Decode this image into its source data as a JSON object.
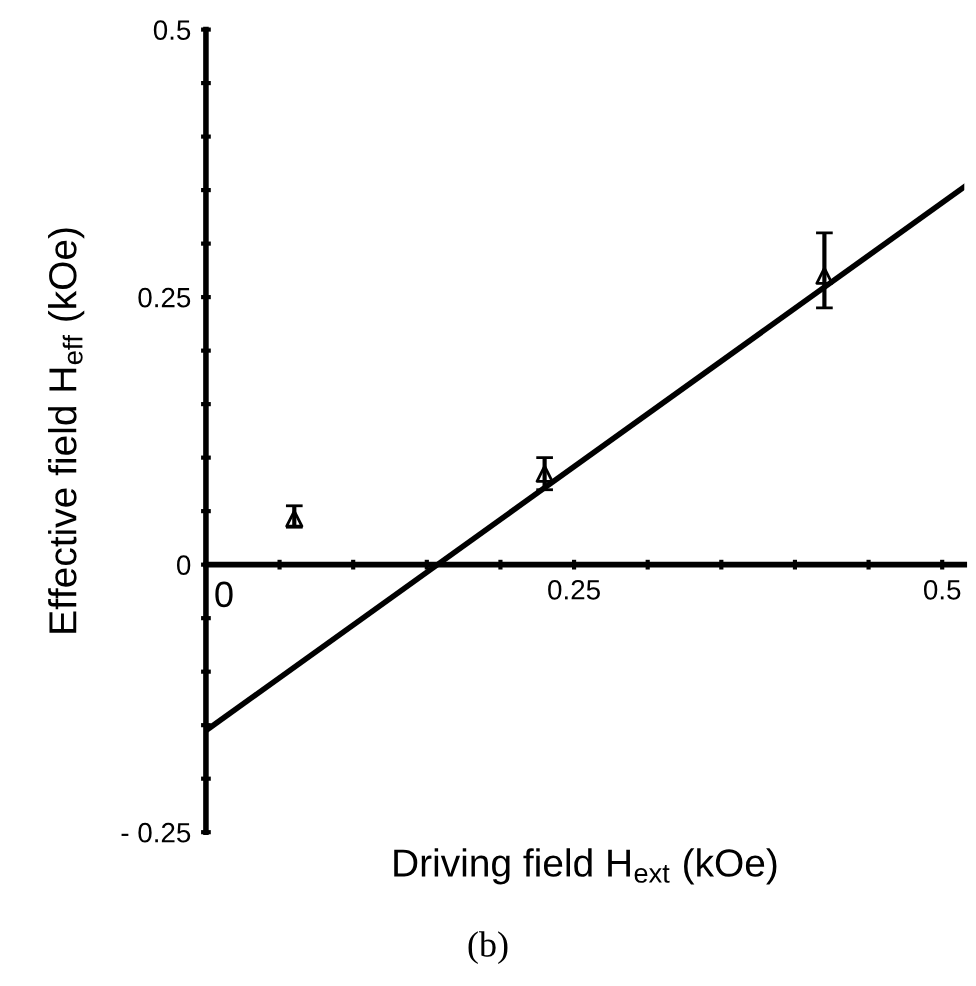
{
  "chart_data": {
    "type": "scatter",
    "xlabel": "Driving field H$_{ext}$ (kOe)",
    "ylabel": "Effective field H$_{eff}$ (kOe)",
    "annotations": [
      "(b)"
    ],
    "xlim": [
      0,
      0.515
    ],
    "ylim": [
      -0.25,
      0.5
    ],
    "xticks": [
      0,
      {
        "value": 0.05,
        "label": null
      },
      {
        "value": 0.1,
        "label": null
      },
      {
        "value": 0.15,
        "label": null
      },
      {
        "value": 0.2,
        "label": null
      },
      0.25,
      {
        "value": 0.3,
        "label": null
      },
      {
        "value": 0.35,
        "label": null
      },
      {
        "value": 0.4,
        "label": null
      },
      {
        "value": 0.45,
        "label": null
      },
      0.5
    ],
    "yticks": [
      {
        "value": -0.25,
        "label": "- 0.25"
      },
      {
        "value": -0.2,
        "label": null
      },
      {
        "value": -0.15,
        "label": null
      },
      {
        "value": -0.1,
        "label": null
      },
      {
        "value": -0.05,
        "label": null
      },
      0,
      {
        "value": 0.05,
        "label": null
      },
      {
        "value": 0.1,
        "label": null
      },
      {
        "value": 0.15,
        "label": null
      },
      {
        "value": 0.2,
        "label": null
      },
      0.25,
      {
        "value": 0.3,
        "label": null
      },
      {
        "value": 0.35,
        "label": null
      },
      {
        "value": 0.4,
        "label": null
      },
      {
        "value": 0.45,
        "label": null
      },
      0.5
    ],
    "grid": false,
    "legend": false,
    "series": [
      {
        "color": "#000000",
        "marker": "triangle",
        "x": [
          0.06,
          0.23,
          0.42
        ],
        "values": [
          0.043,
          0.085,
          0.27
        ],
        "errors": [
          [
            0.035,
            0.055
          ],
          [
            0.07,
            0.1
          ],
          [
            0.24,
            0.31
          ]
        ]
      },
      {
        "type": "line",
        "marker": "none",
        "color": "#000000",
        "x": [
          0,
          0.515
        ],
        "values": [
          -0.155,
          0.353
        ]
      }
    ]
  }
}
